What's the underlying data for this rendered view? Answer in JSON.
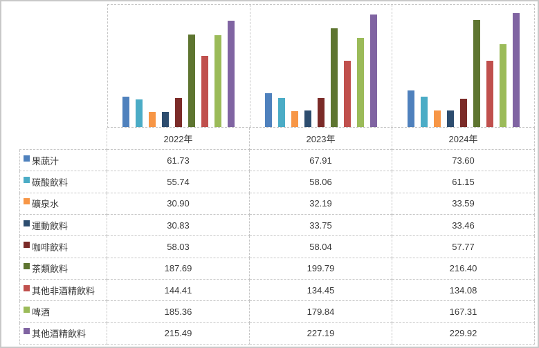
{
  "chart_data": {
    "type": "bar",
    "title": "",
    "xlabel": "",
    "ylabel": "",
    "ylim": [
      0,
      250
    ],
    "grid": "category-separator-lines-dashed",
    "legend_position": "data-table-left-keys",
    "categories": [
      "2022年",
      "2023年",
      "2024年"
    ],
    "series": [
      {
        "name": "果蔬汁",
        "color": "#4f81bd",
        "values": [
          61.73,
          67.91,
          73.6
        ]
      },
      {
        "name": "碳酸飲料",
        "color": "#4bacc6",
        "values": [
          55.74,
          58.06,
          61.15
        ]
      },
      {
        "name": "礦泉水",
        "color": "#f79646",
        "values": [
          30.9,
          32.19,
          33.59
        ]
      },
      {
        "name": "運動飲料",
        "color": "#2d4d6f",
        "values": [
          30.83,
          33.75,
          33.46
        ]
      },
      {
        "name": "咖啡飲料",
        "color": "#7b2b28",
        "values": [
          58.03,
          58.04,
          57.77
        ]
      },
      {
        "name": "茶類飲料",
        "color": "#5e7530",
        "values": [
          187.69,
          199.79,
          216.4
        ]
      },
      {
        "name": "其他非酒精飲料",
        "color": "#c0504d",
        "values": [
          144.41,
          134.45,
          134.08
        ]
      },
      {
        "name": "啤酒",
        "color": "#9bbb59",
        "values": [
          185.36,
          179.84,
          167.31
        ]
      },
      {
        "name": "其他酒精飲料",
        "color": "#8064a2",
        "values": [
          215.49,
          227.19,
          229.92
        ]
      }
    ],
    "value_decimals": 2,
    "colors": {
      "grid_line": "#c6c6c6",
      "outer_border": "#c8c8c8",
      "text": "#3a3a3a",
      "background": "#ffffff"
    }
  }
}
